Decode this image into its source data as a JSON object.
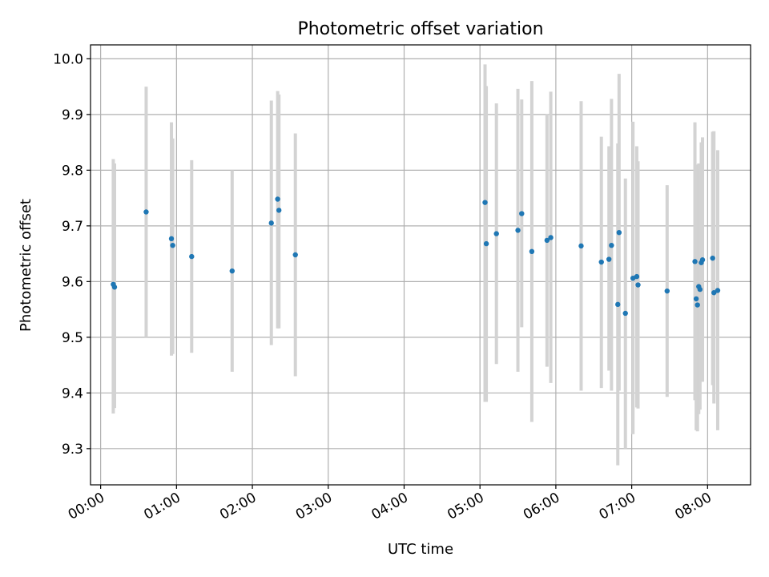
{
  "chart_data": {
    "type": "scatter",
    "title": "Photometric offset variation",
    "xlabel": "UTC time",
    "ylabel": "Photometric offset",
    "x_axis": {
      "kind": "time",
      "range": [
        "23:52",
        "08:34"
      ],
      "ticks": [
        "00:00",
        "01:00",
        "02:00",
        "03:00",
        "04:00",
        "05:00",
        "06:00",
        "07:00",
        "08:00"
      ]
    },
    "y_axis": {
      "range": [
        9.235,
        10.025
      ],
      "ticks": [
        "9.3",
        "9.4",
        "9.5",
        "9.6",
        "9.7",
        "9.8",
        "9.9",
        "10.0"
      ]
    },
    "grid": true,
    "colors": {
      "marker": "#1f77b4",
      "errorbar": "#d3d3d3",
      "grid": "#b0b0b0"
    },
    "points": [
      {
        "x": "00:10",
        "y": 9.595,
        "lo": 9.363,
        "hi": 9.82
      },
      {
        "x": "00:11",
        "y": 9.59,
        "lo": 9.373,
        "hi": 9.812
      },
      {
        "x": "00:36",
        "y": 9.725,
        "lo": 9.5,
        "hi": 9.95
      },
      {
        "x": "00:56",
        "y": 9.677,
        "lo": 9.467,
        "hi": 9.886
      },
      {
        "x": "00:57",
        "y": 9.665,
        "lo": 9.47,
        "hi": 9.857
      },
      {
        "x": "01:12",
        "y": 9.645,
        "lo": 9.472,
        "hi": 9.818
      },
      {
        "x": "01:44",
        "y": 9.619,
        "lo": 9.438,
        "hi": 9.8
      },
      {
        "x": "02:15",
        "y": 9.705,
        "lo": 9.486,
        "hi": 9.925
      },
      {
        "x": "02:20",
        "y": 9.748,
        "lo": 9.516,
        "hi": 9.942
      },
      {
        "x": "02:21",
        "y": 9.728,
        "lo": 9.516,
        "hi": 9.936
      },
      {
        "x": "02:34",
        "y": 9.648,
        "lo": 9.43,
        "hi": 9.866
      },
      {
        "x": "05:04",
        "y": 9.742,
        "lo": 9.384,
        "hi": 9.99
      },
      {
        "x": "05:05",
        "y": 9.668,
        "lo": 9.384,
        "hi": 9.951
      },
      {
        "x": "05:13",
        "y": 9.686,
        "lo": 9.452,
        "hi": 9.92
      },
      {
        "x": "05:30",
        "y": 9.692,
        "lo": 9.438,
        "hi": 9.946
      },
      {
        "x": "05:33",
        "y": 9.722,
        "lo": 9.518,
        "hi": 9.927
      },
      {
        "x": "05:41",
        "y": 9.654,
        "lo": 9.348,
        "hi": 9.96
      },
      {
        "x": "05:53",
        "y": 9.674,
        "lo": 9.447,
        "hi": 9.901
      },
      {
        "x": "05:56",
        "y": 9.679,
        "lo": 9.418,
        "hi": 9.941
      },
      {
        "x": "06:20",
        "y": 9.664,
        "lo": 9.404,
        "hi": 9.924
      },
      {
        "x": "06:36",
        "y": 9.635,
        "lo": 9.409,
        "hi": 9.86
      },
      {
        "x": "06:42",
        "y": 9.64,
        "lo": 9.44,
        "hi": 9.843
      },
      {
        "x": "06:44",
        "y": 9.665,
        "lo": 9.404,
        "hi": 9.928
      },
      {
        "x": "06:49",
        "y": 9.559,
        "lo": 9.27,
        "hi": 9.848
      },
      {
        "x": "06:50",
        "y": 9.688,
        "lo": 9.404,
        "hi": 9.973
      },
      {
        "x": "06:55",
        "y": 9.543,
        "lo": 9.3,
        "hi": 9.785
      },
      {
        "x": "07:01",
        "y": 9.606,
        "lo": 9.326,
        "hi": 9.887
      },
      {
        "x": "07:04",
        "y": 9.609,
        "lo": 9.374,
        "hi": 9.843
      },
      {
        "x": "07:05",
        "y": 9.594,
        "lo": 9.372,
        "hi": 9.816
      },
      {
        "x": "07:28",
        "y": 9.583,
        "lo": 9.393,
        "hi": 9.773
      },
      {
        "x": "07:50",
        "y": 9.636,
        "lo": 9.387,
        "hi": 9.886
      },
      {
        "x": "07:51",
        "y": 9.569,
        "lo": 9.333,
        "hi": 9.806
      },
      {
        "x": "07:52",
        "y": 9.558,
        "lo": 9.331,
        "hi": 9.81
      },
      {
        "x": "07:53",
        "y": 9.591,
        "lo": 9.362,
        "hi": 9.812
      },
      {
        "x": "07:54",
        "y": 9.586,
        "lo": 9.37,
        "hi": 9.802
      },
      {
        "x": "07:55",
        "y": 9.634,
        "lo": 9.42,
        "hi": 9.85
      },
      {
        "x": "07:56",
        "y": 9.639,
        "lo": 9.42,
        "hi": 9.859
      },
      {
        "x": "08:04",
        "y": 9.642,
        "lo": 9.414,
        "hi": 9.869
      },
      {
        "x": "08:05",
        "y": 9.58,
        "lo": 9.381,
        "hi": 9.87
      },
      {
        "x": "08:08",
        "y": 9.584,
        "lo": 9.333,
        "hi": 9.836
      }
    ]
  }
}
